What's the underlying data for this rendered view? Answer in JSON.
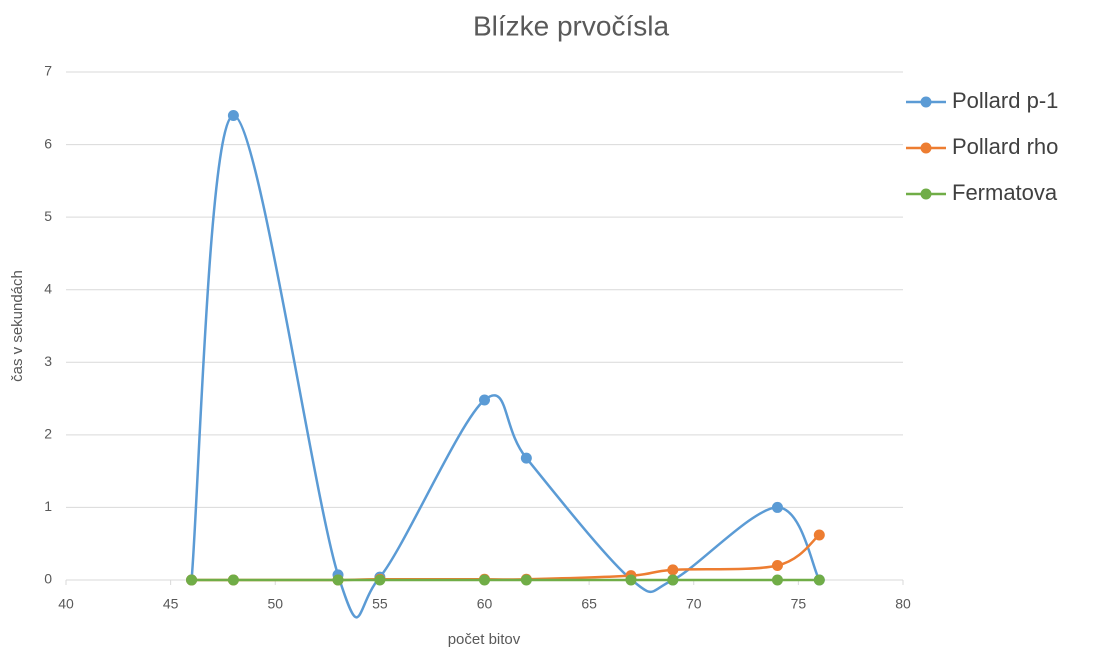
{
  "chart_data": {
    "type": "line",
    "smooth": true,
    "title": "Blízke prvočísla",
    "xlabel": "počet bitov",
    "ylabel": "čas v sekundách",
    "x": [
      46,
      48,
      53,
      55,
      60,
      62,
      67,
      69,
      74,
      76
    ],
    "series": [
      {
        "name": "Pollard p-1",
        "color": "#5b9bd5",
        "values": [
          0,
          6.4,
          0.07,
          0.04,
          2.48,
          1.68,
          0.01,
          0,
          1.0,
          0
        ]
      },
      {
        "name": "Pollard rho",
        "color": "#ed7d31",
        "values": [
          0,
          0,
          0,
          0.01,
          0.01,
          0.01,
          0.06,
          0.14,
          0.2,
          0.62
        ]
      },
      {
        "name": "Fermatova",
        "color": "#70ad47",
        "values": [
          0,
          0,
          0,
          0,
          0,
          0,
          0,
          0,
          0,
          0
        ]
      }
    ],
    "xlim": [
      40,
      80
    ],
    "xticks": [
      40,
      45,
      50,
      55,
      60,
      65,
      70,
      75,
      80
    ],
    "ylim": [
      0,
      7
    ],
    "yticks": [
      0,
      1,
      2,
      3,
      4,
      5,
      6,
      7
    ],
    "grid": true,
    "legend": "right"
  }
}
